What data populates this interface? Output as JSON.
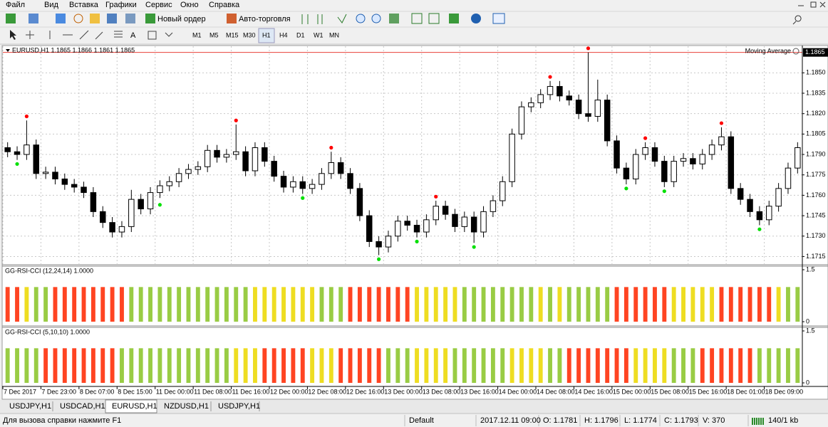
{
  "menu": [
    "Файл",
    "Вид",
    "Вставка",
    "Графики",
    "Сервис",
    "Окно",
    "Справка"
  ],
  "toolbar": {
    "new_order": "Новый ордер",
    "auto_trading": "Авто-торговля",
    "timeframes": [
      "M1",
      "M5",
      "M15",
      "M30",
      "H1",
      "H4",
      "D1",
      "W1",
      "MN"
    ]
  },
  "chart_data": [
    {
      "type": "candlestick",
      "title": "EURUSD,H1  1.1865 1.1866 1.1861 1.1865",
      "indicator": "Moving Average",
      "last_price": {
        "value": 1.1865,
        "label": "1.1865"
      },
      "last_price_color": "#e8403a",
      "up_color": "#ffffff",
      "down_color": "#000000",
      "grid": true,
      "ylim": [
        1.171,
        1.1869
      ],
      "yticks": [
        {
          "value": 1.185,
          "label": "1.1850"
        },
        1.1835,
        {
          "value": 1.182,
          "label": "1.1820"
        },
        1.1805,
        {
          "value": 1.179,
          "label": "1.1790"
        },
        1.1775,
        {
          "value": 1.176,
          "label": "1.1760"
        },
        1.1745,
        {
          "value": 1.173,
          "label": "1.1730"
        },
        1.1715
      ],
      "x_labels": [
        "7 Dec 2017",
        "7 Dec 23:00",
        "8 Dec 07:00",
        "8 Dec 15:00",
        "11 Dec 00:00",
        "11 Dec 08:00",
        "11 Dec 16:00",
        "12 Dec 00:00",
        "12 Dec 08:00",
        "12 Dec 16:00",
        "13 Dec 00:00",
        "13 Dec 08:00",
        "13 Dec 16:00",
        "14 Dec 00:00",
        "14 Dec 08:00",
        "14 Dec 16:00",
        "15 Dec 00:00",
        "15 Dec 08:00",
        "15 Dec 16:00",
        "18 Dec 01:00",
        "18 Dec 09:00"
      ],
      "ohlc": [
        [
          1.1795,
          1.1799,
          1.1788,
          1.1792
        ],
        [
          1.1792,
          1.1796,
          1.1786,
          1.179
        ],
        [
          1.179,
          1.1815,
          1.1786,
          1.1797
        ],
        [
          1.1797,
          1.1801,
          1.1772,
          1.1776
        ],
        [
          1.1776,
          1.1781,
          1.1772,
          1.1777
        ],
        [
          1.1777,
          1.1781,
          1.1768,
          1.1772
        ],
        [
          1.1772,
          1.1776,
          1.1764,
          1.1768
        ],
        [
          1.1768,
          1.1772,
          1.1762,
          1.1766
        ],
        [
          1.1766,
          1.177,
          1.1758,
          1.1762
        ],
        [
          1.1762,
          1.1766,
          1.1744,
          1.1748
        ],
        [
          1.1748,
          1.1752,
          1.1736,
          1.174
        ],
        [
          1.174,
          1.1744,
          1.1729,
          1.1733
        ],
        [
          1.1733,
          1.1741,
          1.1729,
          1.1737
        ],
        [
          1.1737,
          1.1764,
          1.1733,
          1.1757
        ],
        [
          1.1757,
          1.1761,
          1.1746,
          1.175
        ],
        [
          1.175,
          1.1766,
          1.1746,
          1.1762
        ],
        [
          1.1762,
          1.1771,
          1.1758,
          1.1767
        ],
        [
          1.1767,
          1.1774,
          1.1763,
          1.177
        ],
        [
          1.177,
          1.178,
          1.1766,
          1.1776
        ],
        [
          1.1776,
          1.1783,
          1.1772,
          1.1779
        ],
        [
          1.1779,
          1.1785,
          1.1775,
          1.1781
        ],
        [
          1.1781,
          1.1797,
          1.1777,
          1.1793
        ],
        [
          1.1793,
          1.1797,
          1.1784,
          1.1788
        ],
        [
          1.1788,
          1.1794,
          1.1784,
          1.179
        ],
        [
          1.179,
          1.1812,
          1.1786,
          1.1792
        ],
        [
          1.1792,
          1.1796,
          1.1774,
          1.1778
        ],
        [
          1.1778,
          1.1799,
          1.1774,
          1.1795
        ],
        [
          1.1795,
          1.1799,
          1.1781,
          1.1785
        ],
        [
          1.1785,
          1.1789,
          1.177,
          1.1774
        ],
        [
          1.1774,
          1.1778,
          1.1762,
          1.1766
        ],
        [
          1.1766,
          1.1774,
          1.1762,
          1.177
        ],
        [
          1.177,
          1.1774,
          1.1761,
          1.1765
        ],
        [
          1.1765,
          1.1772,
          1.1761,
          1.1768
        ],
        [
          1.1768,
          1.178,
          1.1764,
          1.1776
        ],
        [
          1.1776,
          1.1792,
          1.1772,
          1.1784
        ],
        [
          1.1784,
          1.1788,
          1.1772,
          1.1776
        ],
        [
          1.1776,
          1.178,
          1.1761,
          1.1765
        ],
        [
          1.1765,
          1.1769,
          1.1741,
          1.1745
        ],
        [
          1.1745,
          1.1749,
          1.1722,
          1.1726
        ],
        [
          1.1726,
          1.173,
          1.1716,
          1.1722
        ],
        [
          1.1722,
          1.1734,
          1.1718,
          1.173
        ],
        [
          1.173,
          1.1745,
          1.1726,
          1.1741
        ],
        [
          1.1741,
          1.1745,
          1.1734,
          1.1738
        ],
        [
          1.1738,
          1.1742,
          1.1729,
          1.1733
        ],
        [
          1.1733,
          1.1746,
          1.1729,
          1.1742
        ],
        [
          1.1742,
          1.1756,
          1.1738,
          1.1752
        ],
        [
          1.1752,
          1.1756,
          1.1742,
          1.1746
        ],
        [
          1.1746,
          1.175,
          1.1733,
          1.1737
        ],
        [
          1.1737,
          1.1748,
          1.1733,
          1.1744
        ],
        [
          1.1744,
          1.1748,
          1.1725,
          1.1733
        ],
        [
          1.1733,
          1.1752,
          1.1729,
          1.1748
        ],
        [
          1.1748,
          1.176,
          1.1744,
          1.1756
        ],
        [
          1.1756,
          1.1774,
          1.1752,
          1.177
        ],
        [
          1.177,
          1.1809,
          1.1766,
          1.1805
        ],
        [
          1.1805,
          1.1829,
          1.1801,
          1.1825
        ],
        [
          1.1825,
          1.1832,
          1.1821,
          1.1828
        ],
        [
          1.1828,
          1.1838,
          1.1824,
          1.1834
        ],
        [
          1.1834,
          1.1844,
          1.183,
          1.184
        ],
        [
          1.184,
          1.1844,
          1.1829,
          1.1833
        ],
        [
          1.1833,
          1.1837,
          1.1826,
          1.183
        ],
        [
          1.183,
          1.1834,
          1.1816,
          1.182
        ],
        [
          1.182,
          1.1865,
          1.1814,
          1.1818
        ],
        [
          1.1818,
          1.1845,
          1.1814,
          1.183
        ],
        [
          1.183,
          1.1834,
          1.1796,
          1.18
        ],
        [
          1.18,
          1.1804,
          1.1776,
          1.178
        ],
        [
          1.178,
          1.1784,
          1.1768,
          1.1772
        ],
        [
          1.1772,
          1.1794,
          1.1768,
          1.179
        ],
        [
          1.179,
          1.1799,
          1.1786,
          1.1795
        ],
        [
          1.1795,
          1.1799,
          1.1781,
          1.1785
        ],
        [
          1.1785,
          1.1789,
          1.1766,
          1.177
        ],
        [
          1.177,
          1.1789,
          1.1766,
          1.1785
        ],
        [
          1.1785,
          1.1791,
          1.1781,
          1.1787
        ],
        [
          1.1787,
          1.1791,
          1.1779,
          1.1783
        ],
        [
          1.1783,
          1.1794,
          1.1779,
          1.179
        ],
        [
          1.179,
          1.1801,
          1.1786,
          1.1797
        ],
        [
          1.1797,
          1.181,
          1.1793,
          1.1803
        ],
        [
          1.1803,
          1.1807,
          1.1761,
          1.1765
        ],
        [
          1.1765,
          1.1769,
          1.1753,
          1.1757
        ],
        [
          1.1757,
          1.1761,
          1.1744,
          1.1748
        ],
        [
          1.1748,
          1.1752,
          1.1738,
          1.1742
        ],
        [
          1.1742,
          1.1756,
          1.1738,
          1.1752
        ],
        [
          1.1752,
          1.1769,
          1.1748,
          1.1765
        ],
        [
          1.1765,
          1.1784,
          1.1761,
          1.178
        ],
        [
          1.178,
          1.1799,
          1.1776,
          1.1795
        ]
      ],
      "up_fractals": {
        "color": "#ff0000",
        "x": [
          2,
          24,
          34,
          45,
          57,
          61,
          67,
          75
        ],
        "values": [
          1.1818,
          1.1815,
          1.1795,
          1.1759,
          1.1847,
          1.1868,
          1.1802,
          1.1813
        ]
      },
      "down_fractals": {
        "color": "#00e000",
        "x": [
          1,
          16,
          31,
          39,
          43,
          49,
          65,
          69,
          79
        ],
        "values": [
          1.1783,
          1.1753,
          1.1758,
          1.1713,
          1.1726,
          1.1722,
          1.1765,
          1.1763,
          1.1735
        ]
      }
    },
    {
      "type": "bar",
      "title": "GG-RSI-CCI (12,24,14) 1.0000",
      "ylim": [
        0,
        1.5
      ],
      "yticks": [
        1.5,
        0
      ],
      "values": [
        1,
        1,
        1,
        1,
        1,
        1,
        1,
        1,
        1,
        1,
        1,
        1,
        1,
        1,
        1,
        1,
        1,
        1,
        1,
        1,
        1,
        1,
        1,
        1,
        1,
        1,
        1,
        1,
        1,
        1,
        1,
        1,
        1,
        1,
        1,
        1,
        1,
        1,
        1,
        1,
        1,
        1,
        1,
        1,
        1,
        1,
        1,
        1,
        1,
        1,
        1,
        1,
        1,
        1,
        1,
        1,
        1,
        1,
        1,
        1,
        1,
        1,
        1,
        1,
        1,
        1,
        1,
        1,
        1,
        1,
        1,
        1,
        1,
        1,
        1,
        1,
        1,
        1,
        1,
        1,
        1,
        1,
        1,
        1
      ],
      "colors": [
        "#f42",
        "#f42",
        "#ed2",
        "#9c4",
        "#9c4",
        "#f42",
        "#f42",
        "#f42",
        "#f42",
        "#f42",
        "#f42",
        "#f42",
        "#f42",
        "#9c4",
        "#9c4",
        "#9c4",
        "#9c4",
        "#9c4",
        "#9c4",
        "#9c4",
        "#9c4",
        "#9c4",
        "#9c4",
        "#9c4",
        "#9c4",
        "#9c4",
        "#ed2",
        "#ed2",
        "#ed2",
        "#ed2",
        "#ed2",
        "#ed2",
        "#ed2",
        "#9c4",
        "#9c4",
        "#9c4",
        "#f42",
        "#f42",
        "#f42",
        "#f42",
        "#f42",
        "#f42",
        "#f42",
        "#ed2",
        "#ed2",
        "#ed2",
        "#ed2",
        "#ed2",
        "#9c4",
        "#9c4",
        "#9c4",
        "#9c4",
        "#9c4",
        "#9c4",
        "#9c4",
        "#9c4",
        "#ed2",
        "#9c4",
        "#ed2",
        "#9c4",
        "#9c4",
        "#9c4",
        "#9c4",
        "#9c4",
        "#f42",
        "#f42",
        "#f42",
        "#f42",
        "#f42",
        "#f42",
        "#ed2",
        "#ed2",
        "#ed2",
        "#ed2",
        "#ed2",
        "#f42",
        "#f42",
        "#f42",
        "#f42",
        "#f42",
        "#f42",
        "#ed2",
        "#9c4",
        "#9c4"
      ]
    },
    {
      "type": "bar",
      "title": "GG-RSI-CCI (5,10,10) 1.0000",
      "ylim": [
        0,
        1.5
      ],
      "yticks": [
        1.5,
        0
      ],
      "values": [
        1,
        1,
        1,
        1,
        1,
        1,
        1,
        1,
        1,
        1,
        1,
        1,
        1,
        1,
        1,
        1,
        1,
        1,
        1,
        1,
        1,
        1,
        1,
        1,
        1,
        1,
        1,
        1,
        1,
        1,
        1,
        1,
        1,
        1,
        1,
        1,
        1,
        1,
        1,
        1,
        1,
        1,
        1,
        1,
        1,
        1,
        1,
        1,
        1,
        1,
        1,
        1,
        1,
        1,
        1,
        1,
        1,
        1,
        1,
        1,
        1,
        1,
        1,
        1,
        1,
        1,
        1,
        1,
        1,
        1,
        1,
        1,
        1,
        1,
        1,
        1,
        1,
        1,
        1,
        1,
        1,
        1,
        1,
        1
      ],
      "colors": [
        "#9c4",
        "#9c4",
        "#9c4",
        "#9c4",
        "#f42",
        "#f42",
        "#f42",
        "#f42",
        "#f42",
        "#f42",
        "#f42",
        "#f42",
        "#9c4",
        "#9c4",
        "#9c4",
        "#9c4",
        "#9c4",
        "#9c4",
        "#9c4",
        "#9c4",
        "#9c4",
        "#9c4",
        "#9c4",
        "#9c4",
        "#ed2",
        "#ed2",
        "#ed2",
        "#f42",
        "#f42",
        "#f42",
        "#f42",
        "#f42",
        "#ed2",
        "#ed2",
        "#ed2",
        "#f42",
        "#f42",
        "#f42",
        "#f42",
        "#f42",
        "#9c4",
        "#9c4",
        "#9c4",
        "#ed2",
        "#ed2",
        "#ed2",
        "#ed2",
        "#9c4",
        "#9c4",
        "#9c4",
        "#9c4",
        "#9c4",
        "#9c4",
        "#ed2",
        "#ed2",
        "#ed2",
        "#ed2",
        "#9c4",
        "#9c4",
        "#f42",
        "#f42",
        "#f42",
        "#f42",
        "#f42",
        "#f42",
        "#f42",
        "#ed2",
        "#ed2",
        "#ed2",
        "#ed2",
        "#9c4",
        "#9c4",
        "#9c4",
        "#f42",
        "#f42",
        "#f42",
        "#f42",
        "#f42",
        "#f42",
        "#9c4",
        "#9c4",
        "#9c4",
        "#9c4",
        "#9c4"
      ]
    }
  ],
  "tabs": [
    "USDJPY,H1",
    "USDCAD,H1",
    "EURUSD,H1",
    "NZDUSD,H1",
    "USDJPY,H1"
  ],
  "status": {
    "help": "Для вызова справки нажмите F1",
    "profile": "Default",
    "time": "2017.12.11 09:00",
    "open": "O: 1.1781",
    "high": "H: 1.1796",
    "low": "L: 1.1774",
    "close": "C: 1.1793",
    "volume": "V: 370",
    "traffic": "140/1 kb"
  }
}
